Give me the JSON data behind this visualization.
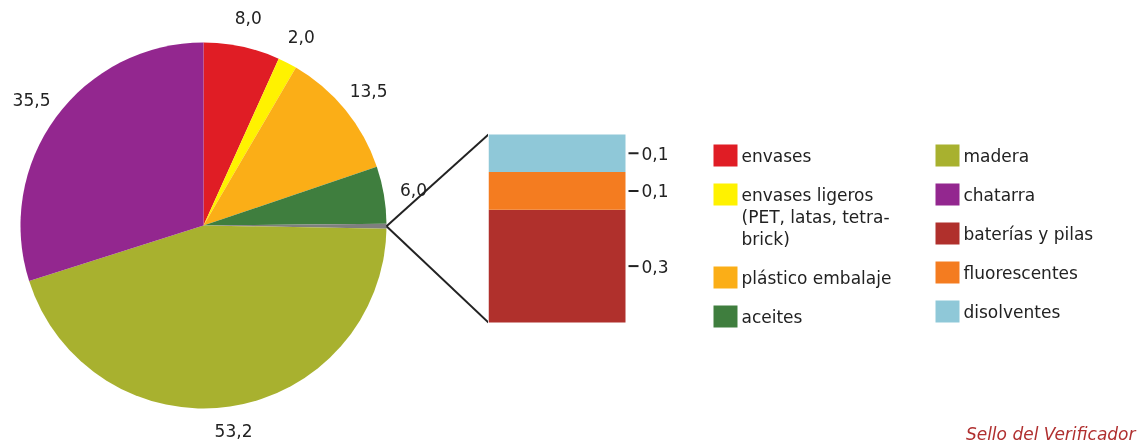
{
  "chart_data": [
    {
      "type": "pie",
      "categories": [
        "envases",
        "envases ligeros (PET, latas, tetra-brick)",
        "plástico embalaje",
        "aceites",
        null,
        "madera",
        "chatarra"
      ],
      "values": [
        8.0,
        2.0,
        13.5,
        6.0,
        0.5,
        53.2,
        35.5
      ],
      "colors": [
        "#e01d25",
        "#fff200",
        "#fbae17",
        "#3f7e3e",
        "#7f7f7f",
        "#a8b12f",
        "#93278f"
      ],
      "value_labels": [
        "8,0",
        "2,0",
        "13,5",
        "6,0",
        null,
        "53,2",
        "35,5"
      ],
      "legend": "right"
    },
    {
      "type": "bar",
      "stacked": true,
      "categories": [
        null
      ],
      "series": [
        {
          "name": "baterías y pilas",
          "color": "#b0302c",
          "values": [
            0.3
          ],
          "value_labels": [
            "0,3"
          ]
        },
        {
          "name": "fluorescentes",
          "color": "#f47c20",
          "values": [
            0.1
          ],
          "value_labels": [
            "0,1"
          ]
        },
        {
          "name": "disolventes",
          "color": "#8fc8d8",
          "values": [
            0.1
          ],
          "value_labels": [
            "0,1"
          ]
        }
      ],
      "legend": "right",
      "annotations": [
        "Sello del Verificador"
      ]
    }
  ]
}
